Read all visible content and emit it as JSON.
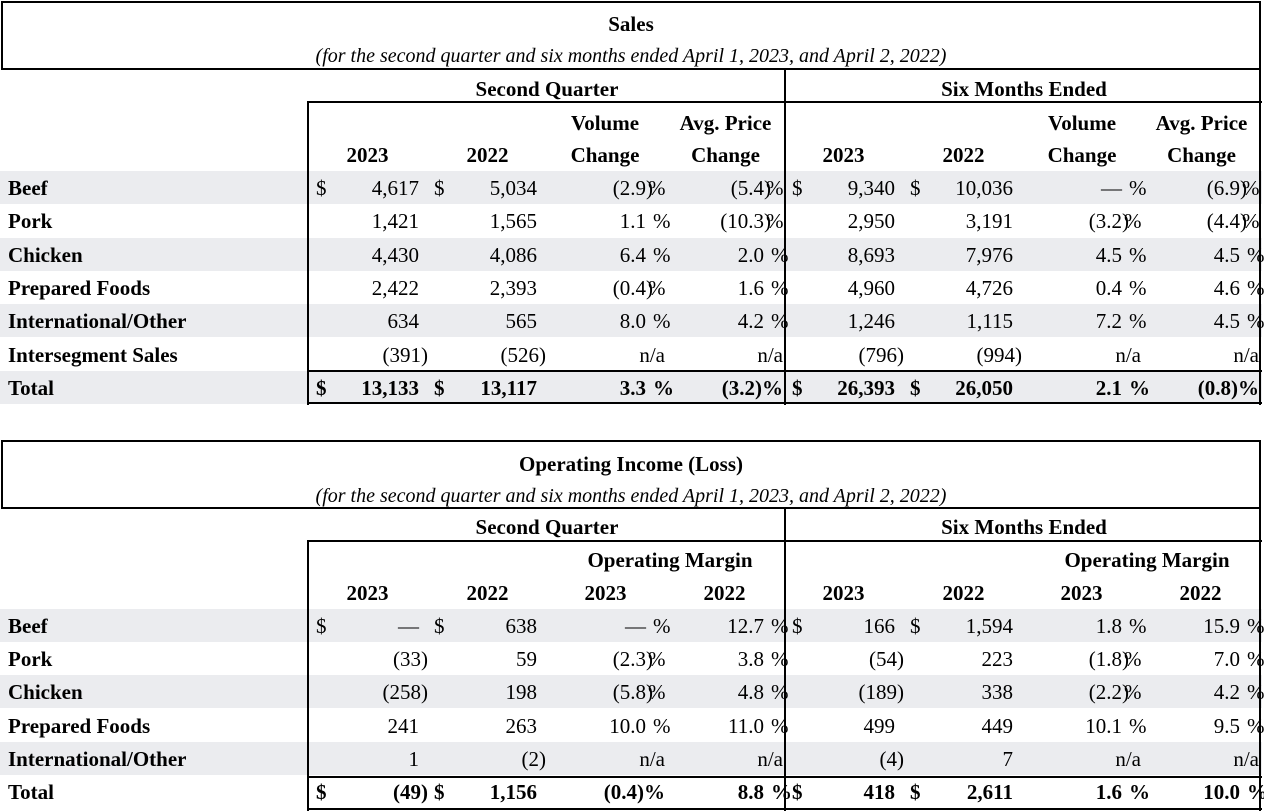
{
  "sales": {
    "title": "Sales",
    "subtitle": "(for the second quarter and six months ended April 1, 2023, and April 2, 2022)",
    "group_left": "Second Quarter",
    "group_right": "Six Months Ended",
    "col_2023": "2023",
    "col_2022": "2022",
    "vol_line1": "Volume",
    "vol_line2": "Change",
    "price_line1": "Avg. Price",
    "price_line2": "Change",
    "currency": "$",
    "pct": "%",
    "rows": [
      {
        "label": "Beef",
        "q23": "4,617",
        "q22": "5,034",
        "qvol": "(2.9)",
        "qprice": "(5.4)",
        "s23": "9,340",
        "s22": "10,036",
        "svol": "—",
        "sprice": "(6.9)"
      },
      {
        "label": "Pork",
        "q23": "1,421",
        "q22": "1,565",
        "qvol": "1.1",
        "qprice": "(10.3)",
        "s23": "2,950",
        "s22": "3,191",
        "svol": "(3.2)",
        "sprice": "(4.4)"
      },
      {
        "label": "Chicken",
        "q23": "4,430",
        "q22": "4,086",
        "qvol": "6.4",
        "qprice": "2.0",
        "s23": "8,693",
        "s22": "7,976",
        "svol": "4.5",
        "sprice": "4.5"
      },
      {
        "label": "Prepared Foods",
        "q23": "2,422",
        "q22": "2,393",
        "qvol": "(0.4)",
        "qprice": "1.6",
        "s23": "4,960",
        "s22": "4,726",
        "svol": "0.4",
        "sprice": "4.6"
      },
      {
        "label": "International/Other",
        "q23": "634",
        "q22": "565",
        "qvol": "8.0",
        "qprice": "4.2",
        "s23": "1,246",
        "s22": "1,115",
        "svol": "7.2",
        "sprice": "4.5"
      },
      {
        "label": "Intersegment Sales",
        "q23": "(391)",
        "q22": "(526)",
        "qvol": "n/a",
        "qprice": "n/a",
        "s23": "(796)",
        "s22": "(994)",
        "svol": "n/a",
        "sprice": "n/a"
      },
      {
        "label": "Total",
        "q23": "13,133",
        "q22": "13,117",
        "qvol": "3.3",
        "qprice": "(3.2)%",
        "s23": "26,393",
        "s22": "26,050",
        "svol": "2.1",
        "sprice": "(0.8)%"
      }
    ]
  },
  "income": {
    "title": "Operating Income (Loss)",
    "subtitle": "(for the second quarter and six months ended April 1, 2023, and April 2, 2022)",
    "group_left": "Second Quarter",
    "group_right": "Six Months Ended",
    "margin_label": "Operating Margin",
    "col_2023": "2023",
    "col_2022": "2022",
    "currency": "$",
    "pct": "%",
    "rows": [
      {
        "label": "Beef",
        "q23": "—",
        "q22": "638",
        "qm23": "—",
        "qm22": "12.7",
        "s23": "166",
        "s22": "1,594",
        "sm23": "1.8",
        "sm22": "15.9"
      },
      {
        "label": "Pork",
        "q23": "(33)",
        "q22": "59",
        "qm23": "(2.3)",
        "qm22": "3.8",
        "s23": "(54)",
        "s22": "223",
        "sm23": "(1.8)",
        "sm22": "7.0"
      },
      {
        "label": "Chicken",
        "q23": "(258)",
        "q22": "198",
        "qm23": "(5.8)",
        "qm22": "4.8",
        "s23": "(189)",
        "s22": "338",
        "sm23": "(2.2)",
        "sm22": "4.2"
      },
      {
        "label": "Prepared Foods",
        "q23": "241",
        "q22": "263",
        "qm23": "10.0",
        "qm22": "11.0",
        "s23": "499",
        "s22": "449",
        "sm23": "10.1",
        "sm22": "9.5"
      },
      {
        "label": "International/Other",
        "q23": "1",
        "q22": "(2)",
        "qm23": "n/a",
        "qm22": "n/a",
        "s23": "(4)",
        "s22": "7",
        "sm23": "n/a",
        "sm22": "n/a"
      },
      {
        "label": "Total",
        "q23": "(49)",
        "q22": "1,156",
        "qm23": "(0.4)%",
        "qm22": "8.8",
        "s23": "418",
        "s22": "2,611",
        "sm23": "1.6",
        "sm22": "10.0"
      }
    ]
  }
}
